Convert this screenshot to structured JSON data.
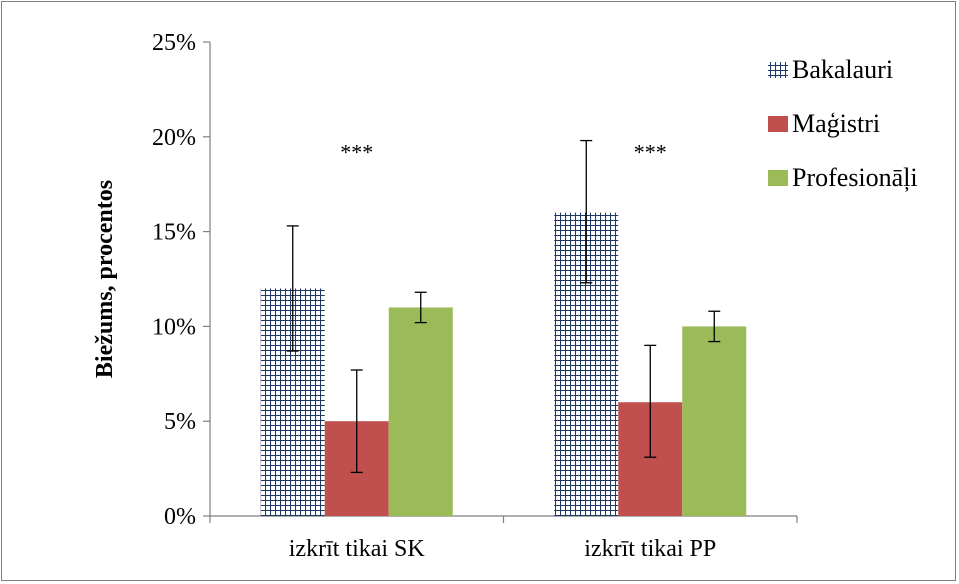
{
  "chart_data": {
    "type": "bar",
    "title": "",
    "xlabel": "",
    "ylabel": "Biežums, procentos",
    "ylim": [
      0,
      25
    ],
    "yticks": [
      "0%",
      "5%",
      "10%",
      "15%",
      "20%",
      "25%"
    ],
    "ytick_values": [
      0,
      5,
      10,
      15,
      20,
      25
    ],
    "categories": [
      "izkrīt tikai SK",
      "izkrīt tikai PP"
    ],
    "series": [
      {
        "name": "Bakalauri",
        "values": [
          12,
          16
        ],
        "err_low": [
          8.7,
          12.3
        ],
        "err_high": [
          15.3,
          19.8
        ],
        "color": "#1f3864",
        "pattern": "grid"
      },
      {
        "name": "Maģistri",
        "values": [
          5,
          6
        ],
        "err_low": [
          2.3,
          3.1
        ],
        "err_high": [
          7.7,
          9.0
        ],
        "color": "#c0504d",
        "pattern": "solid"
      },
      {
        "name": "Profesionāļi",
        "values": [
          11,
          10
        ],
        "err_low": [
          10.2,
          9.2
        ],
        "err_high": [
          11.8,
          10.8
        ],
        "color": "#9bbb59",
        "pattern": "solid"
      }
    ],
    "annotations": [
      "***",
      "***"
    ],
    "legend_position": "top-right",
    "grid": false
  }
}
